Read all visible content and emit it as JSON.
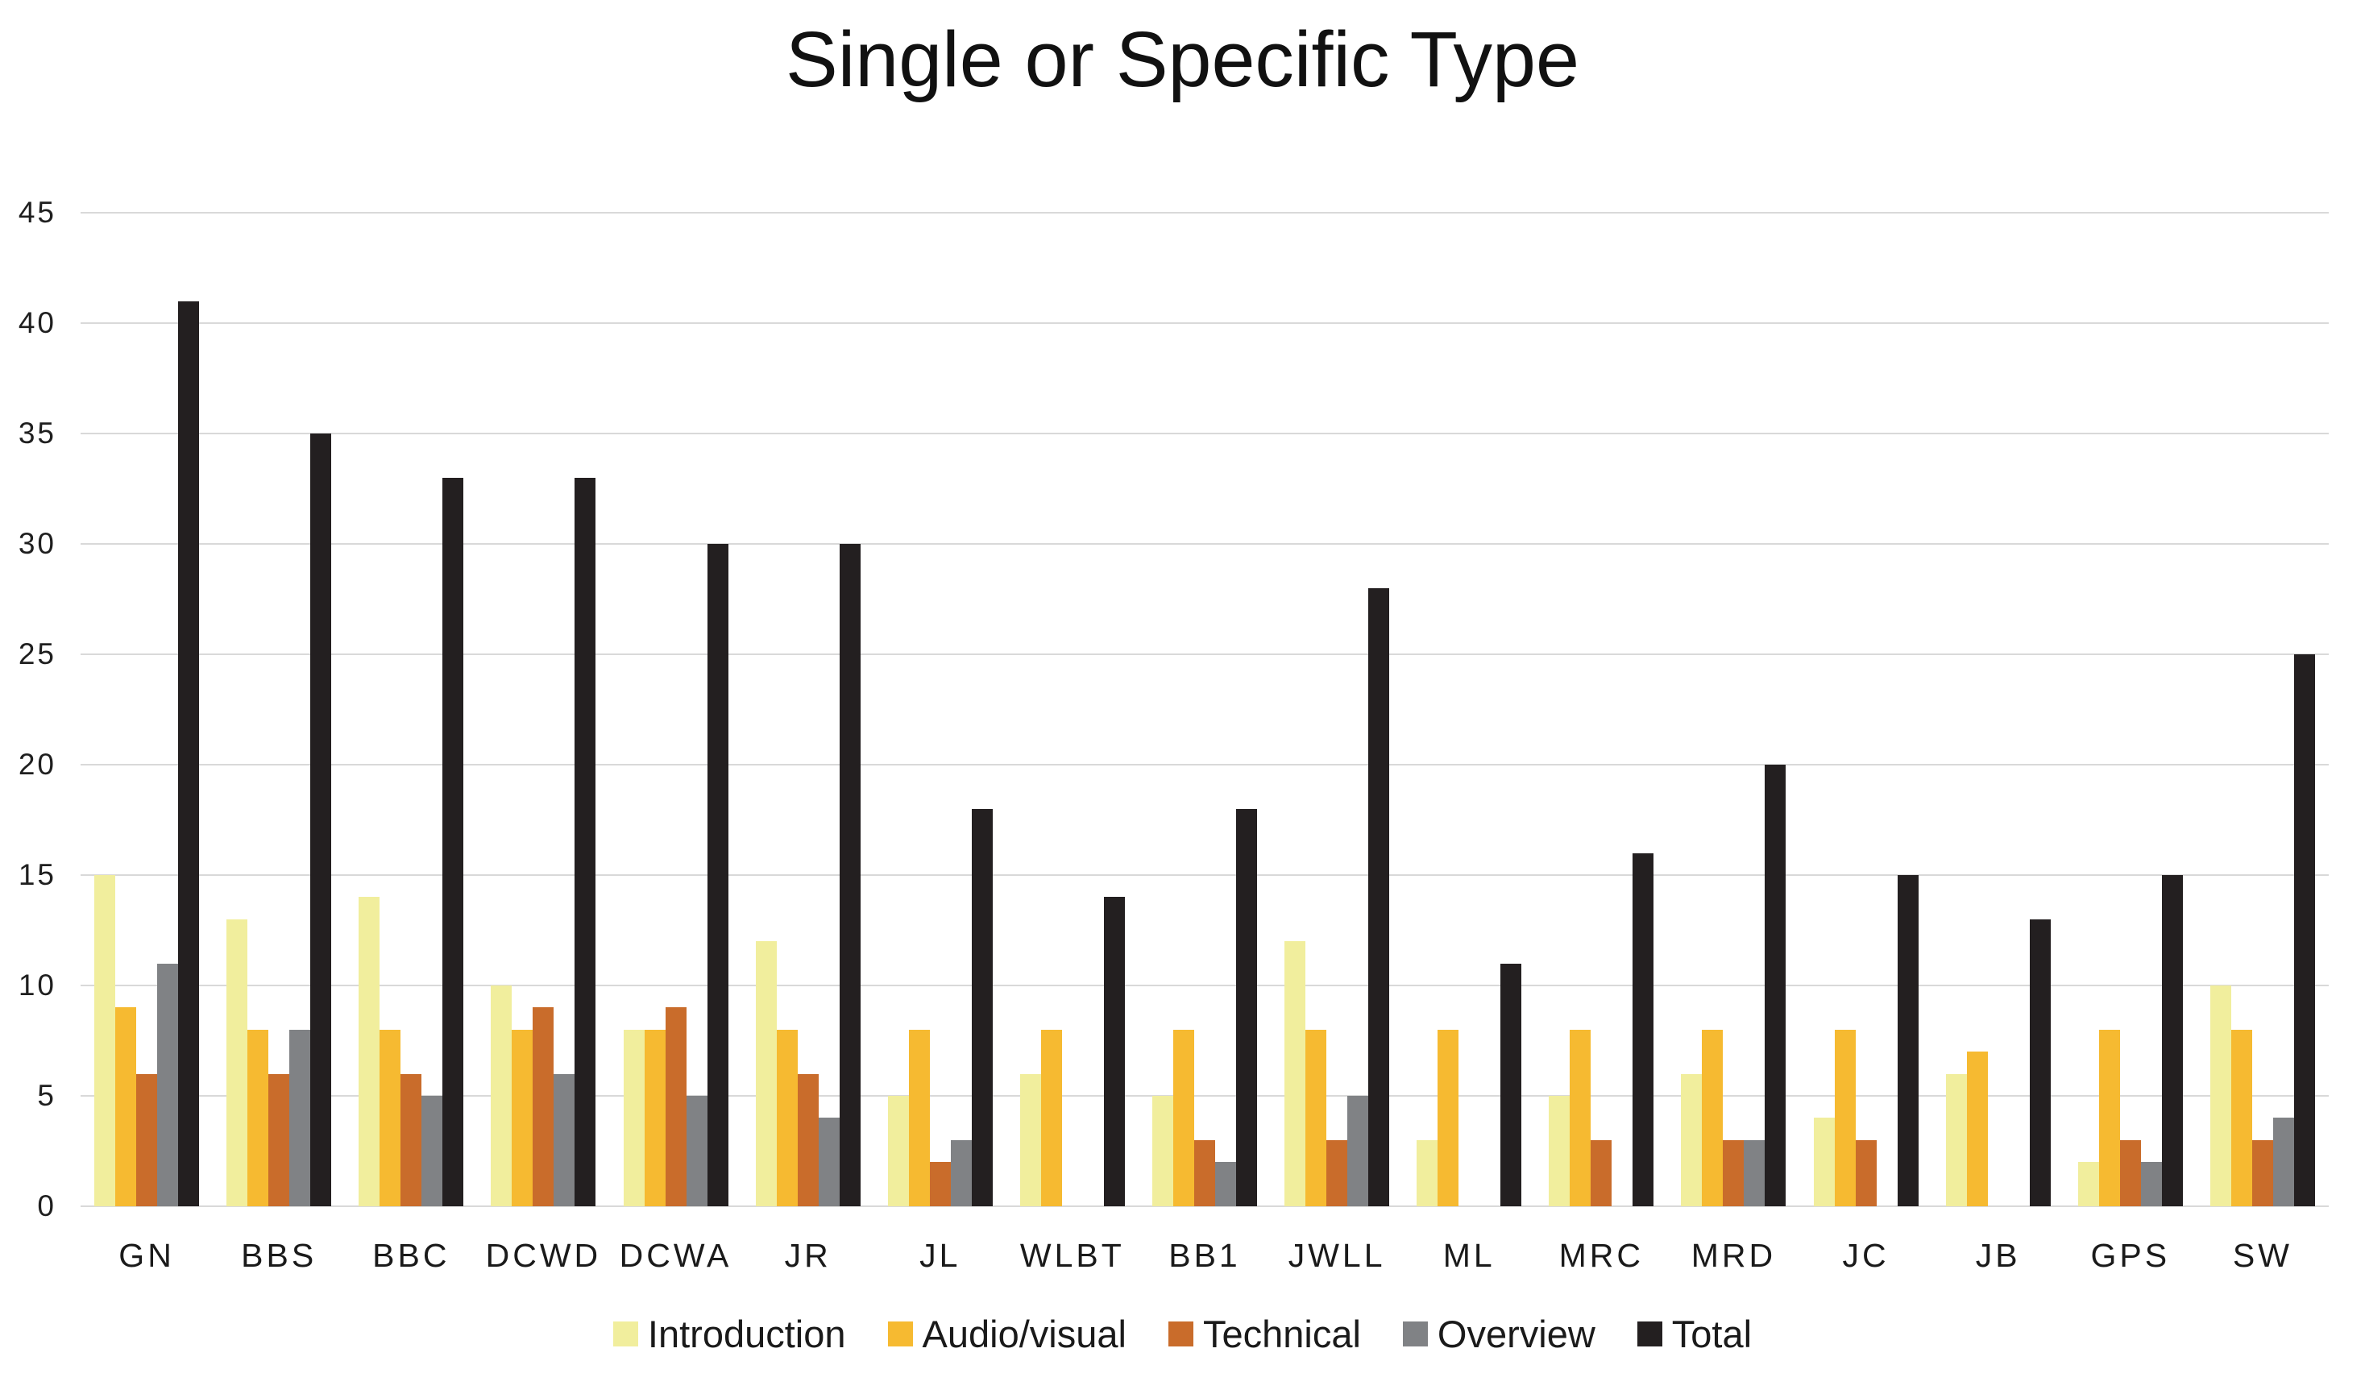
{
  "chart_data": {
    "type": "bar",
    "title": "Single or Specific Type",
    "categories": [
      "GN",
      "BBS",
      "BBC",
      "DCWD",
      "DCWA",
      "JR",
      "JL",
      "WLBT",
      "BB1",
      "JWLL",
      "ML",
      "MRC",
      "MRD",
      "JC",
      "JB",
      "GPS",
      "SW"
    ],
    "series": [
      {
        "name": "Introduction",
        "color": "#F1EE9D",
        "values": [
          15,
          13,
          14,
          10,
          8,
          12,
          5,
          6,
          5,
          12,
          3,
          5,
          6,
          4,
          6,
          2,
          10
        ]
      },
      {
        "name": "Audio/visual",
        "color": "#F6BA31",
        "values": [
          9,
          8,
          8,
          8,
          8,
          8,
          8,
          8,
          8,
          8,
          8,
          8,
          8,
          8,
          7,
          8,
          8
        ]
      },
      {
        "name": "Technical",
        "color": "#C96C2B",
        "values": [
          6,
          6,
          6,
          9,
          9,
          6,
          2,
          0,
          3,
          3,
          0,
          3,
          3,
          3,
          0,
          3,
          3
        ]
      },
      {
        "name": "Overview",
        "color": "#808285",
        "values": [
          11,
          8,
          5,
          6,
          5,
          4,
          3,
          0,
          2,
          5,
          0,
          0,
          3,
          0,
          0,
          2,
          4
        ]
      },
      {
        "name": "Total",
        "color": "#231F20",
        "values": [
          41,
          35,
          33,
          33,
          30,
          30,
          18,
          14,
          18,
          28,
          11,
          16,
          20,
          15,
          13,
          15,
          25
        ]
      }
    ],
    "ylim": [
      0,
      45
    ],
    "ytick_step": 5,
    "ytick_labels": [
      "0",
      "5",
      "10",
      "15",
      "20",
      "25",
      "30",
      "35",
      "40",
      "45"
    ],
    "grid": true,
    "gridline_color": "#D9D9D9",
    "legend_position": "bottom",
    "background_color": "#FFFFFF"
  }
}
